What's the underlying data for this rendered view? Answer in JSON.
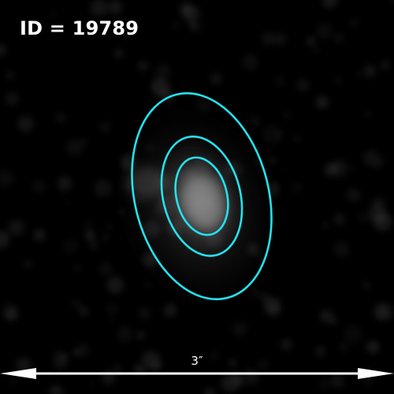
{
  "image": {
    "background_color": "#000000",
    "object_glow_color": "#c8c8c8",
    "noise_color": "#8a8a8a"
  },
  "label": {
    "id_text": "ID = 19789",
    "color": "#ffffff"
  },
  "contours": {
    "color": "#22e3ef",
    "count": 3
  },
  "scale_bar": {
    "text": "3″",
    "color": "#ffffff"
  }
}
